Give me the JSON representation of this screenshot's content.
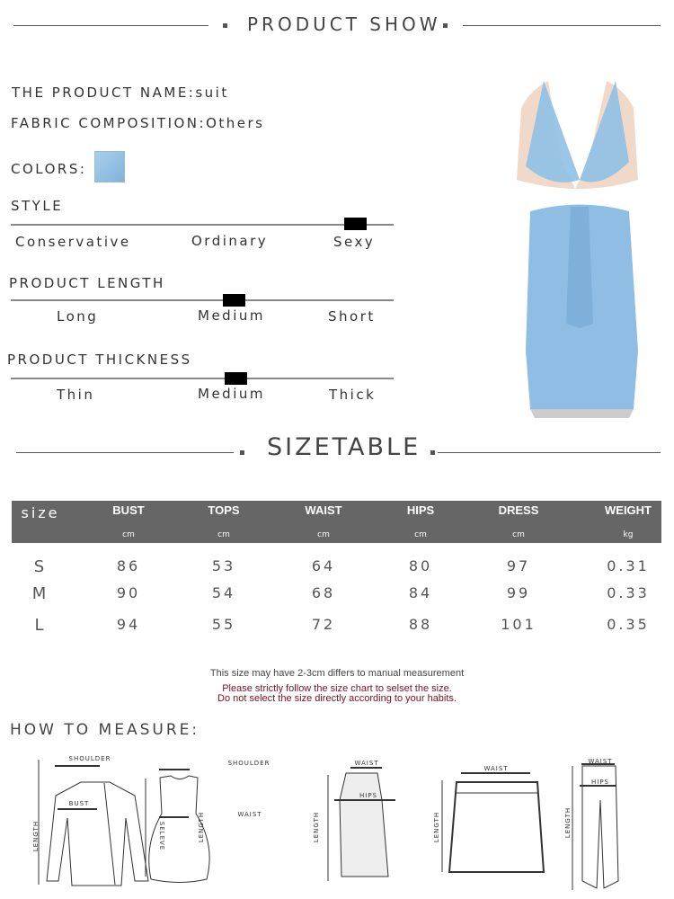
{
  "header": {
    "title": "PRODUCT SHOW"
  },
  "product": {
    "name_label": "THE PRODUCT NAME:",
    "name_value": "suit",
    "fabric_label": "FABRIC COMPOSITION:",
    "fabric_value": "Others",
    "colors_label": "COLORS:",
    "color_swatch": "#8fbde0",
    "image_alt": "light blue halter top and maxi skirt"
  },
  "scales": [
    {
      "title": "STYLE",
      "options": [
        "Conservative",
        "Ordinary",
        "Sexy"
      ],
      "selected": "Sexy"
    },
    {
      "title": "PRODUCT LENGTH",
      "options": [
        "Long",
        "Medium",
        "Short"
      ],
      "selected": "Medium"
    },
    {
      "title": "PRODUCT THICKNESS",
      "options": [
        "Thin",
        "Medium",
        "Thick"
      ],
      "selected": "Medium"
    }
  ],
  "sizetable": {
    "title": "SIZETABLE",
    "columns": [
      {
        "name": "size",
        "unit": ""
      },
      {
        "name": "BUST",
        "unit": "cm"
      },
      {
        "name": "TOPS",
        "unit": "cm"
      },
      {
        "name": "WAIST",
        "unit": "cm"
      },
      {
        "name": "HIPS",
        "unit": "cm"
      },
      {
        "name": "DRESS",
        "unit": "cm"
      },
      {
        "name": "WEIGHT",
        "unit": "kg"
      }
    ],
    "rows": [
      [
        "S",
        "86",
        "53",
        "64",
        "80",
        "97",
        "0.31"
      ],
      [
        "M",
        "90",
        "54",
        "68",
        "84",
        "99",
        "0.33"
      ],
      [
        "L",
        "94",
        "55",
        "72",
        "88",
        "101",
        "0.35"
      ]
    ],
    "header_color": "#666666"
  },
  "notes": {
    "line1": "This size may have 2-3cm differs to manual measurement",
    "line2": "Please strictly follow the size chart to selset the size.",
    "line3": "Do not select the size directly according to your habits.",
    "warning_color": "#7a1020"
  },
  "measure": {
    "title": "HOW TO MEASURE:",
    "labels": {
      "shoulder": "SHOULDER",
      "bust": "BUST",
      "length": "LENGTH",
      "seleve": "SELEVE",
      "waist": "WAIST",
      "hips": "HIPS"
    }
  }
}
